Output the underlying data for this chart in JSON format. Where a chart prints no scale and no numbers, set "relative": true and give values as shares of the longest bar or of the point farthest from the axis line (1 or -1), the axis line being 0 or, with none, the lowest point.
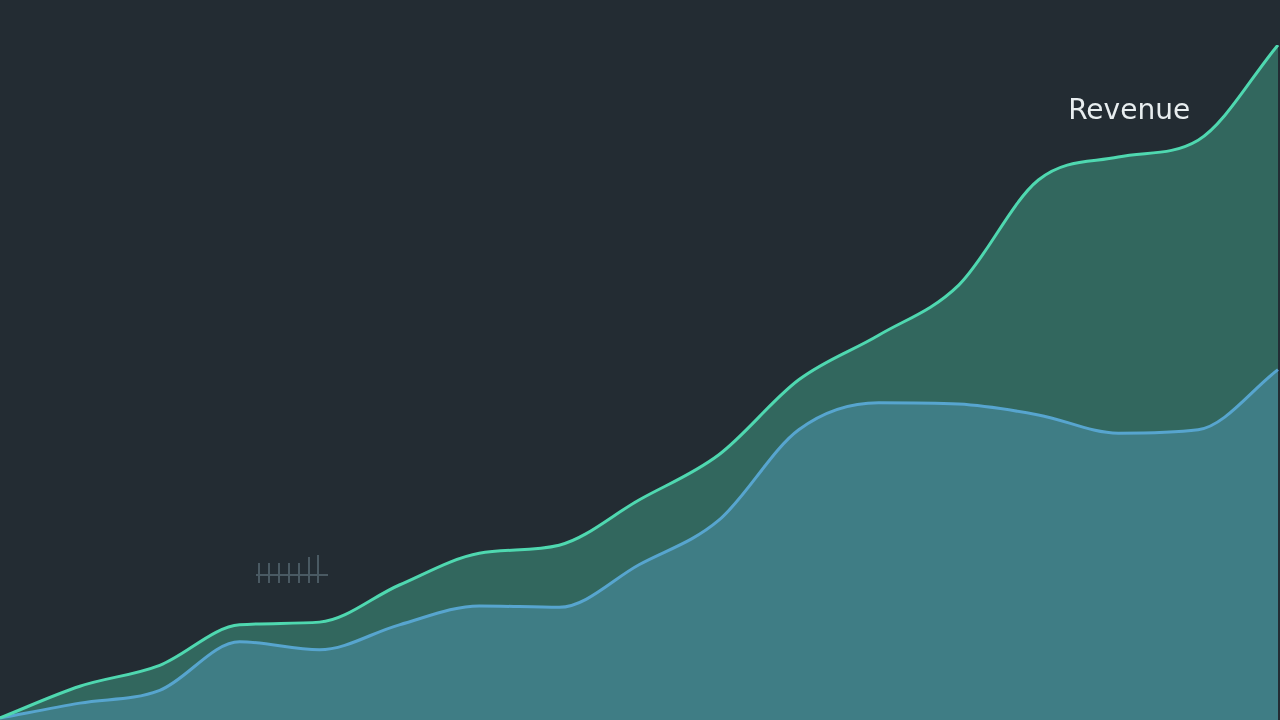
{
  "chart_data": {
    "type": "area",
    "relative": true,
    "categories": [
      null,
      null,
      null,
      null,
      null,
      null,
      null,
      null,
      null,
      null,
      null,
      null,
      null,
      null,
      null,
      null,
      null
    ],
    "series": [
      {
        "name": "Revenue",
        "color": "#4fd8b0",
        "values": [
          0.003,
          0.05,
          0.081,
          0.141,
          0.145,
          0.2,
          0.247,
          0.259,
          0.326,
          0.393,
          0.504,
          0.57,
          0.644,
          0.8,
          0.834,
          0.859,
          1
        ]
      },
      {
        "color": "#5b8be0",
        "values": [
          0.003,
          0.025,
          0.044,
          0.116,
          0.104,
          0.141,
          0.169,
          0.167,
          0.23,
          0.296,
          0.43,
          0.47,
          0.468,
          0.452,
          0.425,
          0.43,
          0.519
        ]
      }
    ]
  }
}
